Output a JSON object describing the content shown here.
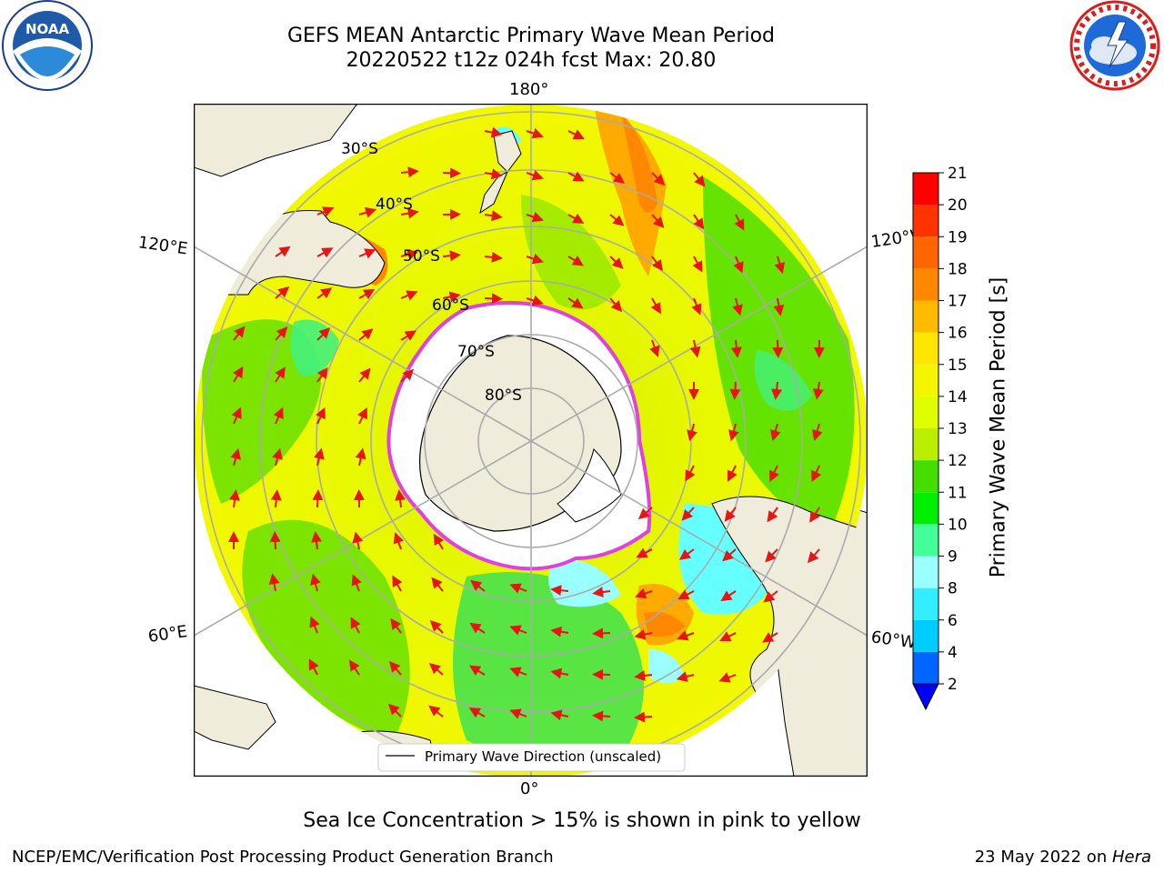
{
  "title": {
    "line1": "GEFS MEAN Antarctic Primary Wave Mean Period",
    "line2": "20220522 t12z 024h fcst   Max: 20.80"
  },
  "map": {
    "longitude_labels": {
      "top": "180°",
      "bottom": "0°",
      "upper_left": "120°E",
      "upper_right": "120°W",
      "lower_left": "60°E",
      "lower_right": "60°W"
    },
    "latitude_labels": [
      "30°S",
      "40°S",
      "50°S",
      "60°S",
      "70°S",
      "80°S"
    ],
    "legend_label": "Primary Wave Direction (unscaled)",
    "colors": {
      "land": "#efecdc",
      "ice": "#ffffff",
      "ice_edge": "#e040e0",
      "arrows": "#e81515",
      "grid": "#aaaaaa"
    }
  },
  "colorbar": {
    "title": "Primary Wave Mean Period [s]",
    "ticks": [
      "2",
      "4",
      "6",
      "8",
      "9",
      "10",
      "11",
      "12",
      "13",
      "14",
      "15",
      "16",
      "17",
      "18",
      "19",
      "20",
      "21"
    ],
    "colors": [
      "#0066ff",
      "#00ccff",
      "#33eeff",
      "#99ffff",
      "#44ff99",
      "#00ee00",
      "#44dd00",
      "#bbee00",
      "#dfff00",
      "#f5f500",
      "#ffe600",
      "#ffbb00",
      "#ff8800",
      "#ff6600",
      "#ff3300",
      "#ff0000"
    ],
    "under_color": "#0000ff"
  },
  "footer": {
    "note": "Sea Ice Concentration > 15% is shown in pink to yellow",
    "credit": "NCEP/EMC/Verification Post Processing Product Generation Branch",
    "date_prefix": "23 May 2022 on ",
    "host": "Hera"
  },
  "logos": {
    "noaa_text": "NOAA"
  }
}
